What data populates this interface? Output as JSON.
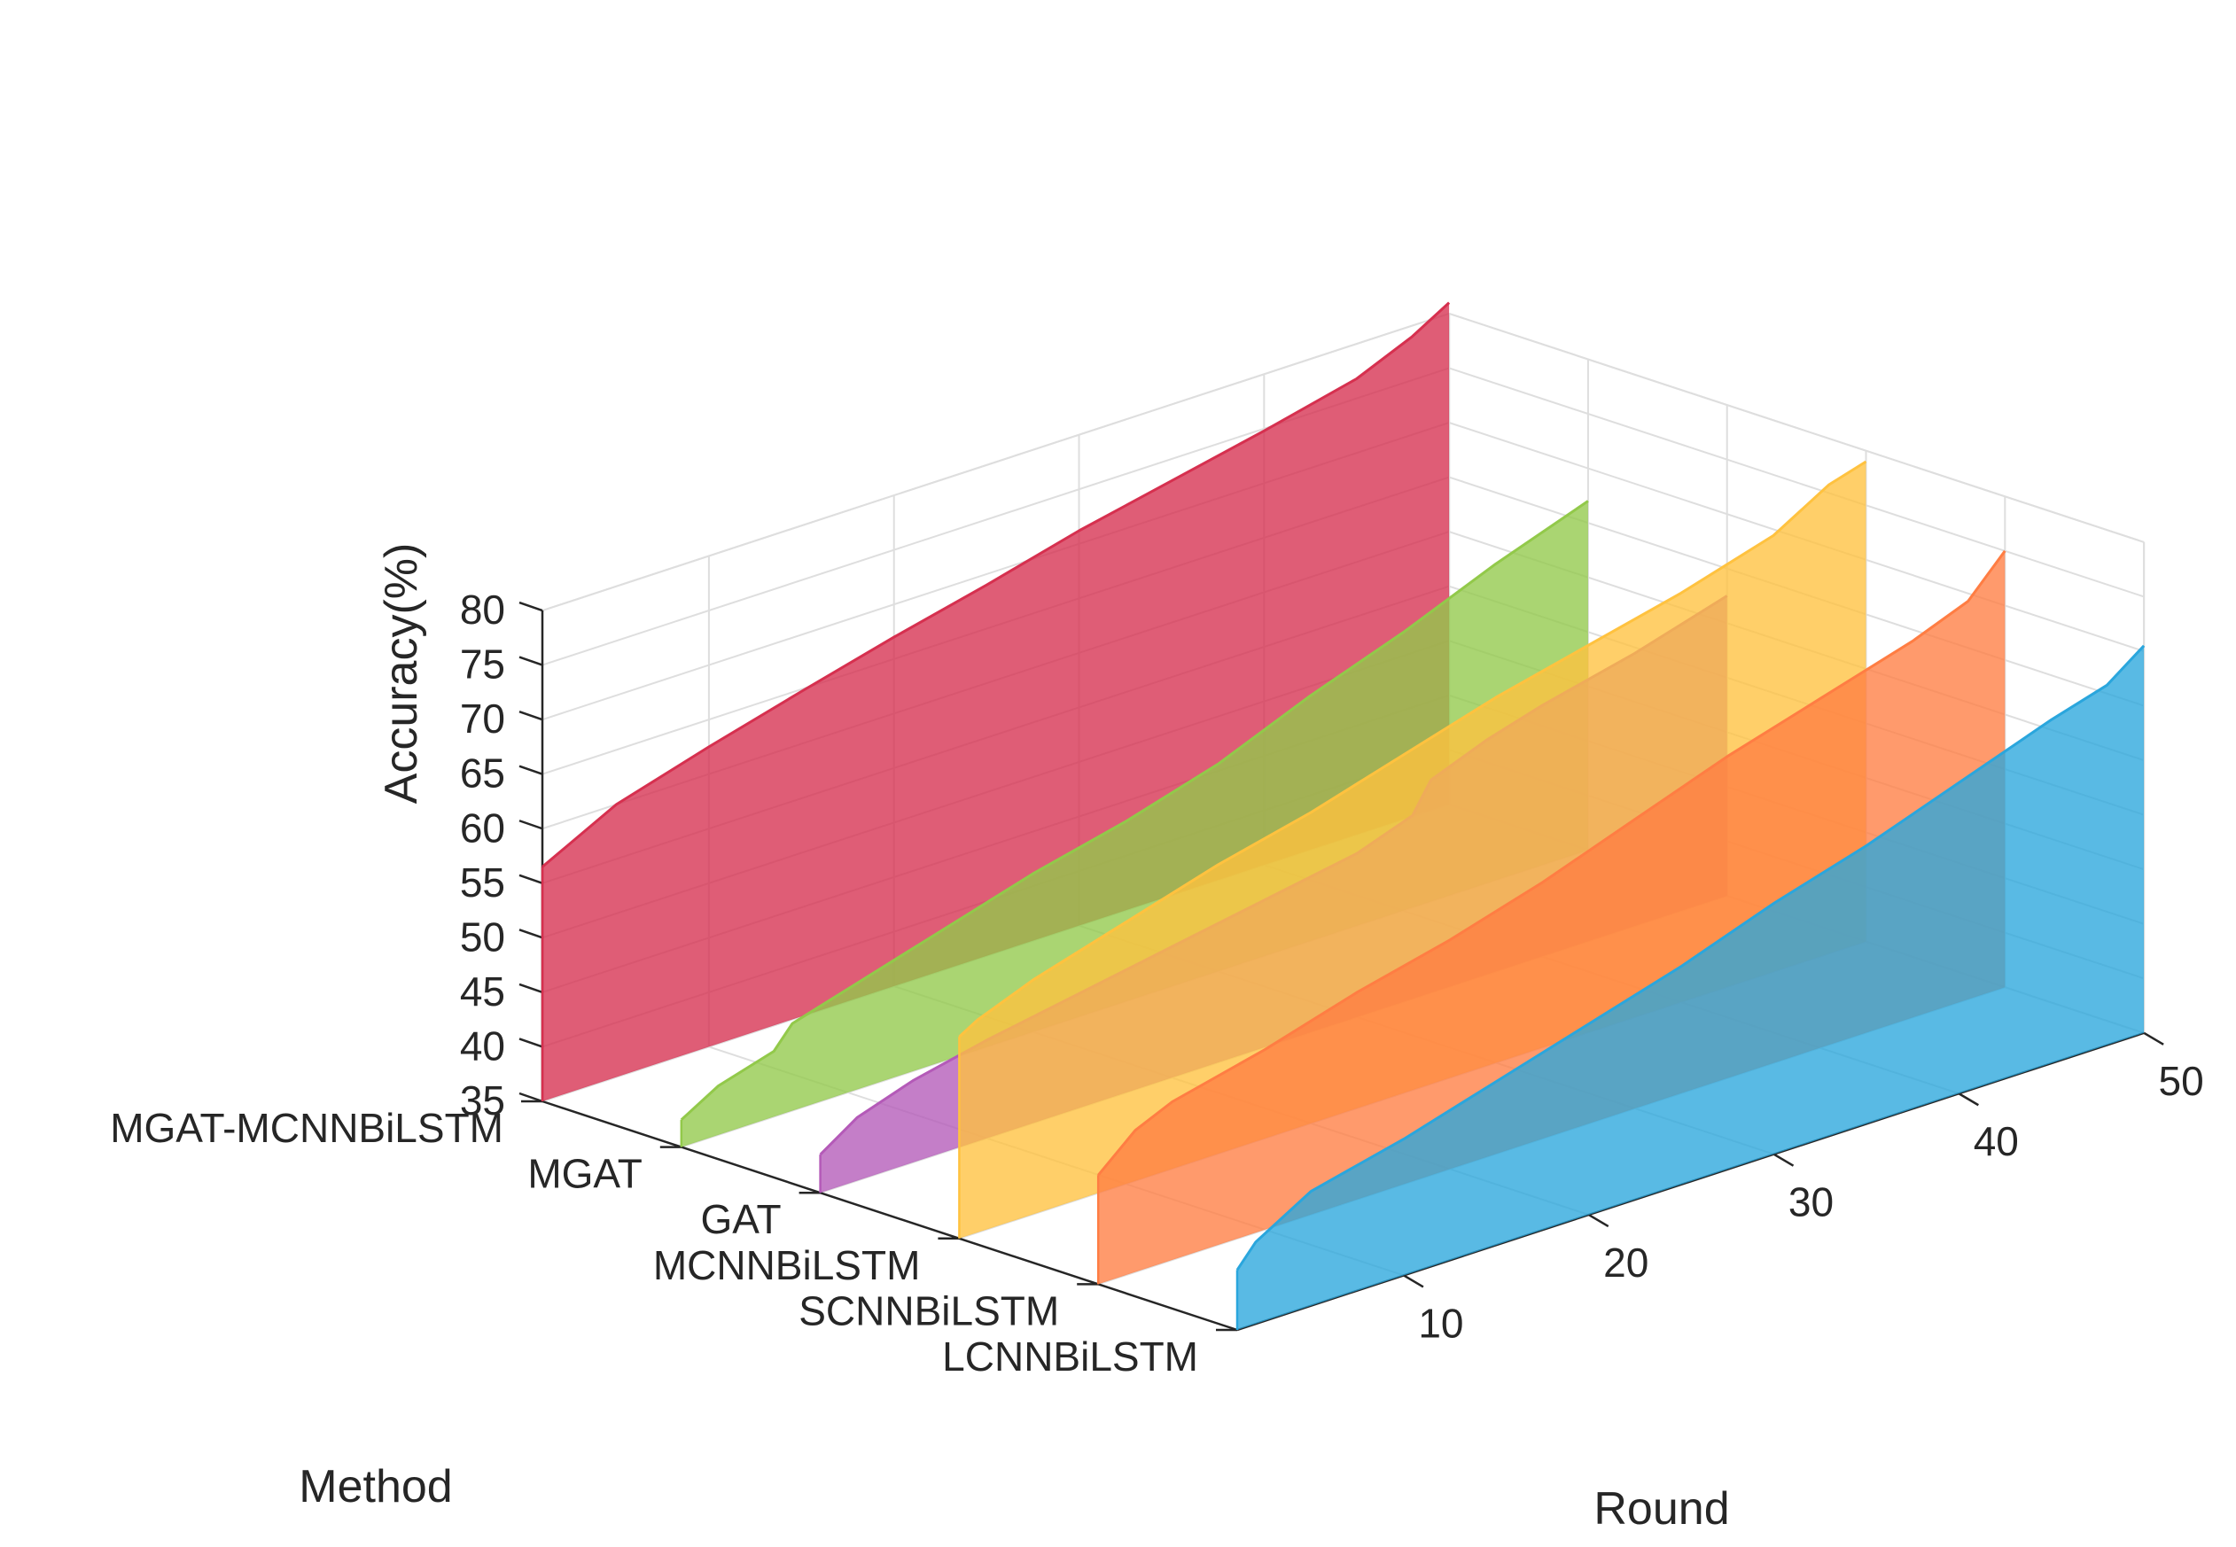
{
  "chart_data": {
    "type": "area",
    "title": "",
    "xlabel": "Round",
    "ylabel": "Accuracy(%)",
    "zlabel": "Method",
    "xlim": [
      1,
      50
    ],
    "ylim": [
      35,
      80
    ],
    "x_ticks": [
      "10",
      "20",
      "30",
      "40",
      "50"
    ],
    "y_ticks": [
      "35",
      "40",
      "45",
      "50",
      "55",
      "60",
      "65",
      "70",
      "75",
      "80"
    ],
    "grid": true,
    "view": "3d-waterfall",
    "methods": [
      "MGAT-MCNNBiLSTM",
      "MGAT",
      "GAT",
      "MCNNBiLSTM",
      "SCNNBiLSTM",
      "LCNNBiLSTM"
    ],
    "series": [
      {
        "name": "MGAT-MCNNBiLSTM",
        "color": "#d6304f",
        "x": [
          1,
          5,
          10,
          15,
          20,
          25,
          30,
          35,
          40,
          45,
          48,
          50
        ],
        "values": [
          56.5,
          60,
          62.5,
          64.8,
          67,
          69,
          71.2,
          73,
          74.8,
          76.8,
          79,
          81
        ]
      },
      {
        "name": "MGAT",
        "color": "#92c94a",
        "x": [
          1,
          3,
          6,
          7,
          10,
          14,
          17,
          20,
          25,
          30,
          35,
          40,
          45,
          50
        ],
        "values": [
          37.5,
          39.5,
          41,
          43,
          44.5,
          46.5,
          48,
          49.5,
          51.5,
          54,
          57.5,
          60.5,
          64,
          67
        ]
      },
      {
        "name": "GAT",
        "color": "#b45ab8",
        "x": [
          1,
          3,
          6,
          10,
          15,
          20,
          25,
          30,
          33,
          34,
          37,
          40,
          45,
          50
        ],
        "values": [
          38.5,
          40.8,
          42.5,
          44,
          45.5,
          47,
          48.5,
          50,
          51.8,
          54.5,
          56.5,
          58,
          60,
          62.5
        ]
      },
      {
        "name": "MCNNBiLSTM",
        "color": "#ffc23f",
        "x": [
          1,
          2,
          5,
          10,
          15,
          20,
          25,
          30,
          35,
          40,
          45,
          48,
          50
        ],
        "values": [
          53.5,
          54.5,
          56.5,
          59,
          61.5,
          63.5,
          66,
          68.5,
          70.5,
          72.5,
          75,
          78,
          79
        ]
      },
      {
        "name": "SCNNBiLSTM",
        "color": "#ff7d43",
        "x": [
          1,
          3,
          5,
          10,
          15,
          20,
          25,
          30,
          35,
          40,
          45,
          48,
          50
        ],
        "values": [
          45,
          48,
          49.5,
          51.5,
          54,
          56,
          58.5,
          61.5,
          64.5,
          67,
          69.5,
          71.5,
          75
        ]
      },
      {
        "name": "LCNNBiLSTM",
        "color": "#2aa6dd",
        "x": [
          1,
          2,
          5,
          10,
          15,
          20,
          25,
          30,
          35,
          40,
          45,
          48,
          50
        ],
        "values": [
          40.5,
          42.5,
          45.5,
          47.5,
          50,
          52.5,
          55,
          58,
          60.5,
          63.5,
          66.5,
          68,
          70.5
        ]
      }
    ]
  }
}
